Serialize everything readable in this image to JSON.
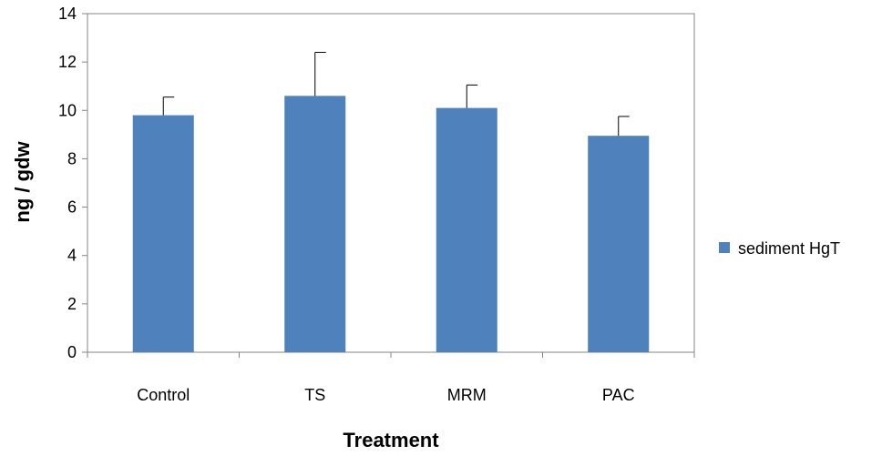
{
  "chart_data": {
    "type": "bar",
    "categories": [
      "Control",
      "TS",
      "MRM",
      "PAC"
    ],
    "series": [
      {
        "name": "sediment HgT",
        "values": [
          9.8,
          10.6,
          10.1,
          8.95
        ],
        "error_plus": [
          0.75,
          1.8,
          0.95,
          0.8
        ],
        "color": "#4f81bd"
      }
    ],
    "title": "",
    "xlabel": "Treatment",
    "ylabel": "ng / gdw",
    "ylim": [
      0,
      14
    ],
    "yticks": [
      "0",
      "2",
      "4",
      "6",
      "8",
      "10",
      "12",
      "14"
    ],
    "grid": false,
    "legend": "right"
  }
}
